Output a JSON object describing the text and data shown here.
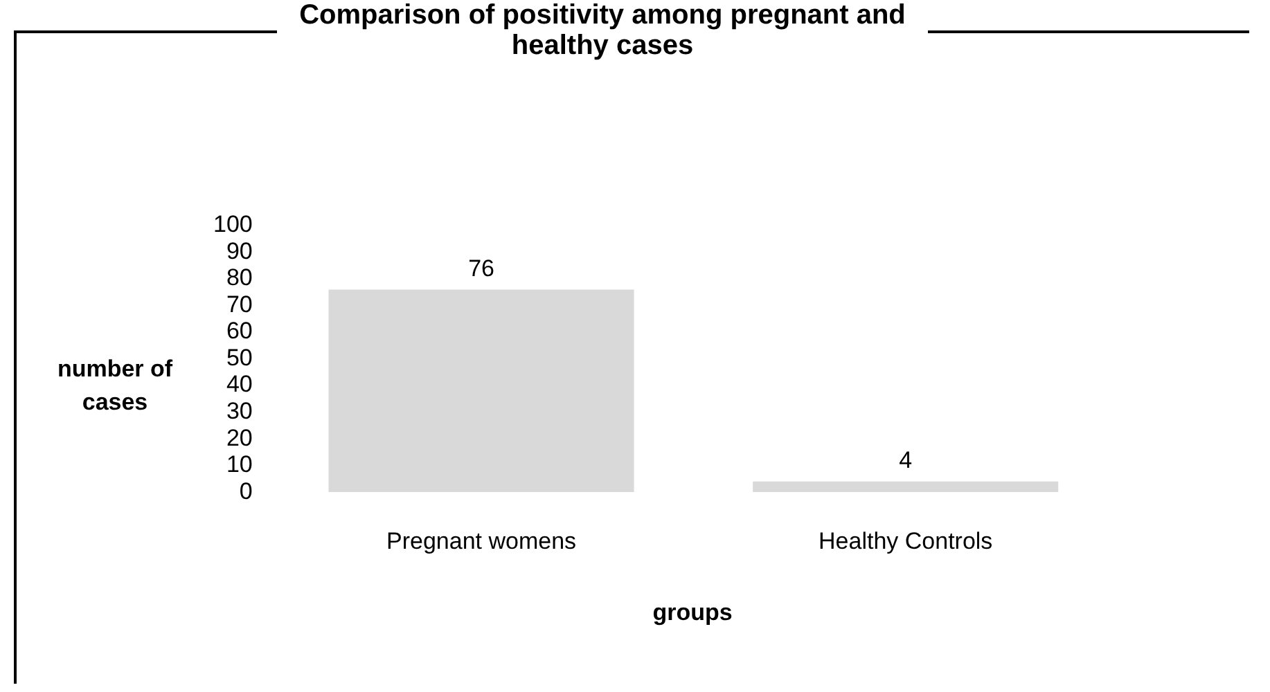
{
  "chart_data": {
    "type": "bar",
    "title": "Comparison of positivity among pregnant and healthy cases",
    "xlabel": "groups",
    "ylabel": "number of cases",
    "categories": [
      "Pregnant womens",
      "Healthy Controls"
    ],
    "values": [
      76,
      4
    ],
    "color": "#d9d9d9",
    "ylim": [
      0,
      100
    ],
    "yticks": [
      0,
      10,
      20,
      30,
      40,
      50,
      60,
      70,
      80,
      90,
      100
    ],
    "grid": false,
    "legend": false,
    "data_labels": true
  }
}
